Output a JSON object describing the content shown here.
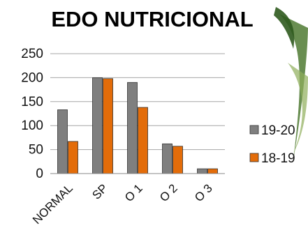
{
  "chart_data": {
    "type": "bar",
    "title": "EDO NUTRICIONAL",
    "categories": [
      "NORMAL",
      "SP",
      "O 1",
      "O 2",
      "O 3"
    ],
    "series": [
      {
        "name": "19-20",
        "values": [
          133,
          200,
          190,
          62,
          10
        ],
        "color": "#7f7f7f"
      },
      {
        "name": "18-19",
        "values": [
          67,
          198,
          138,
          57,
          10
        ],
        "color": "#e36c09"
      }
    ],
    "ylim": [
      0,
      250
    ],
    "yticks": [
      0,
      50,
      100,
      150,
      200,
      250
    ],
    "grid": true,
    "legend": "right",
    "xlabel": "",
    "ylabel": ""
  }
}
